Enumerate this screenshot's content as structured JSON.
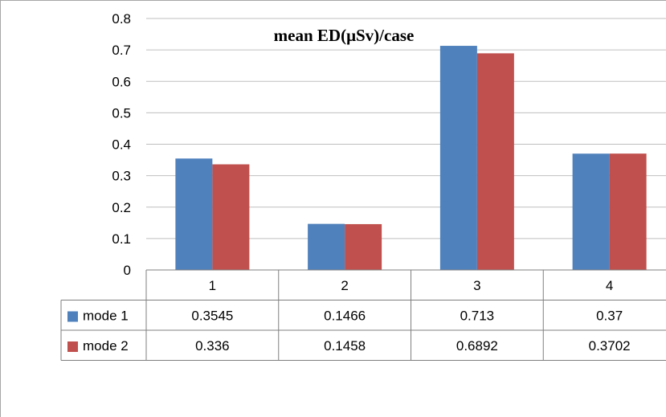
{
  "chart_data": {
    "type": "bar",
    "title": "mean ED(μSv)/case",
    "categories": [
      "1",
      "2",
      "3",
      "4"
    ],
    "series": [
      {
        "name": "mode 1",
        "values": [
          0.3545,
          0.1466,
          0.713,
          0.37
        ],
        "labels": [
          "0.3545",
          "0.1466",
          "0.713",
          "0.37"
        ],
        "color": "#4f81bd"
      },
      {
        "name": "mode 2",
        "values": [
          0.336,
          0.1458,
          0.6892,
          0.3702
        ],
        "labels": [
          "0.336",
          "0.1458",
          "0.6892",
          "0.3702"
        ],
        "color": "#c0504d"
      }
    ],
    "ylim": [
      0,
      0.8
    ],
    "yticks": [
      "0",
      "0.1",
      "0.2",
      "0.3",
      "0.4",
      "0.5",
      "0.6",
      "0.7",
      "0.8"
    ],
    "grid": true,
    "legend": "data-table"
  }
}
